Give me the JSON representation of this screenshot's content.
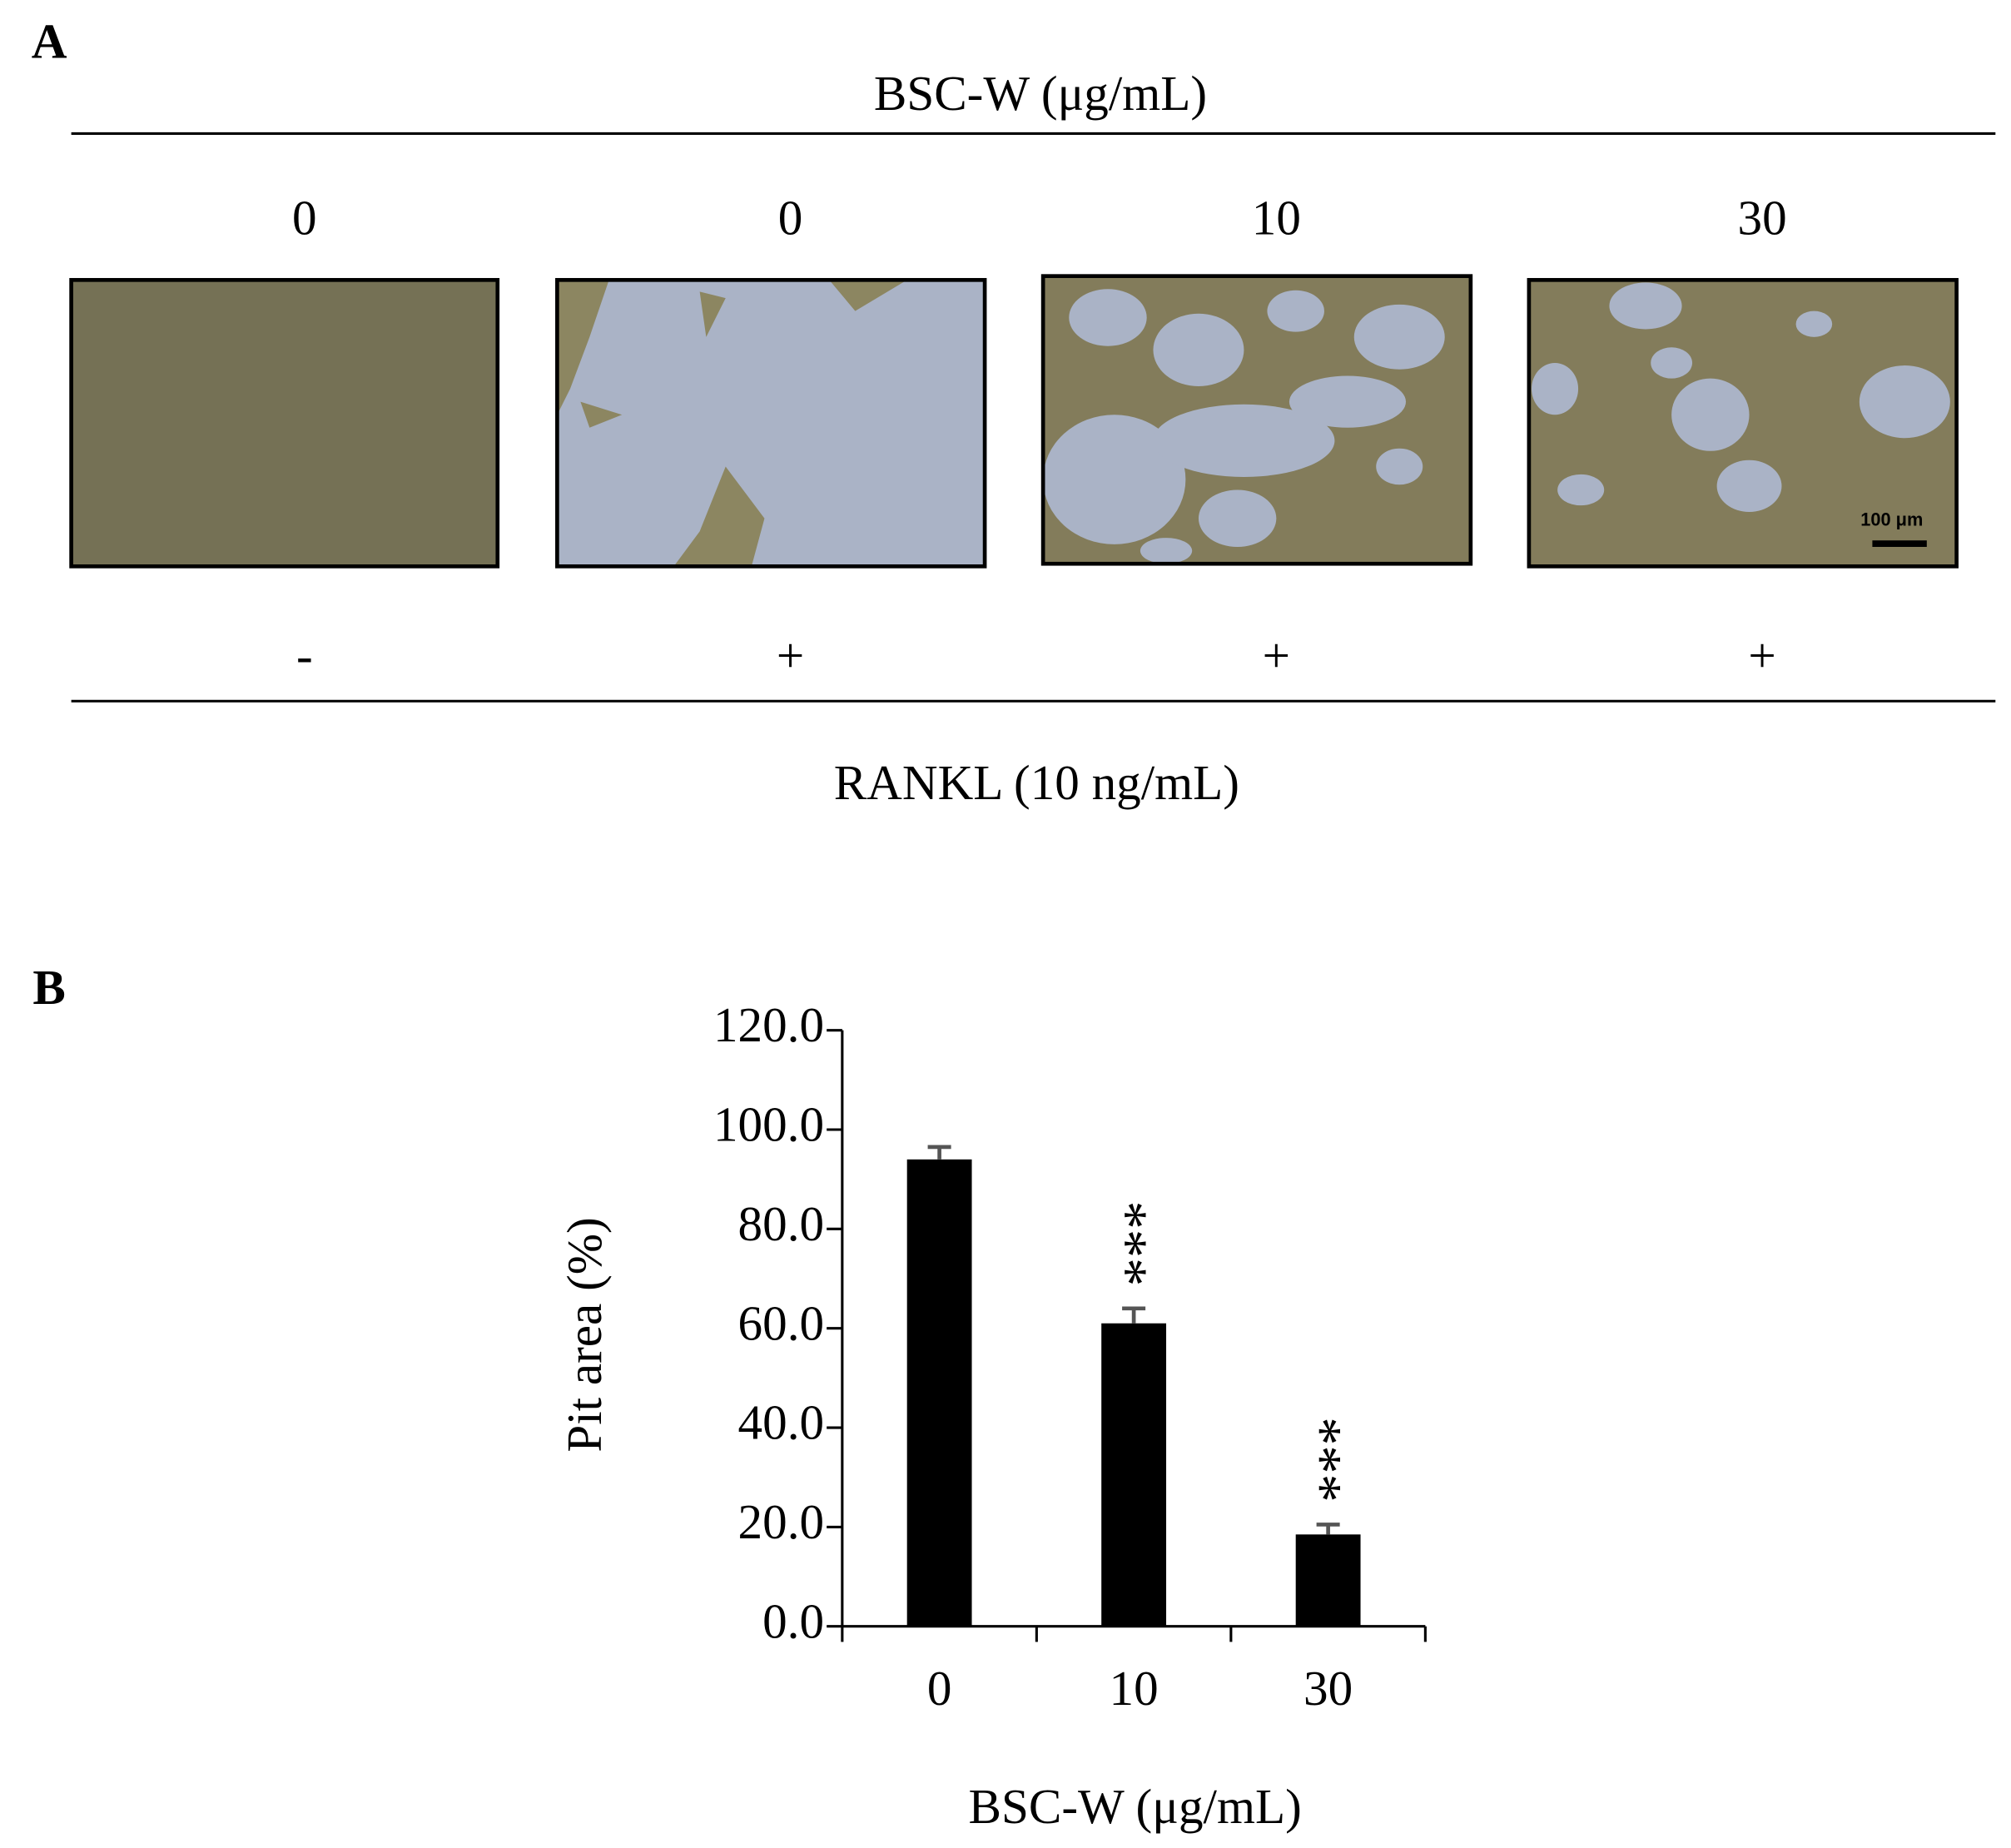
{
  "panel_a": {
    "label": "A",
    "title": "BSC-W (μg/mL)",
    "doses": [
      "0",
      "0",
      "10",
      "30"
    ],
    "rankl": [
      "-",
      "+",
      "+",
      "+"
    ],
    "rankl_label": "RANKL (10 ng/mL)",
    "scale_bar": "100 μm"
  },
  "chart_data": {
    "type": "bar",
    "panel_label": "B",
    "y_label": "Pit area (%)",
    "x_label": "BSC-W (μg/mL)",
    "categories": [
      "0",
      "10",
      "30"
    ],
    "values": [
      94,
      61,
      18.5
    ],
    "errors": [
      2.5,
      3,
      2
    ],
    "significance": [
      null,
      "***",
      "***"
    ],
    "color": "#000000",
    "error_color": "#555555",
    "ylim": [
      0,
      120
    ],
    "yticks": [
      {
        "value": 0,
        "label": "0.0"
      },
      {
        "value": 20,
        "label": "20.0"
      },
      {
        "value": 40,
        "label": "40.0"
      },
      {
        "value": 60,
        "label": "60.0"
      },
      {
        "value": 80,
        "label": "80.0"
      },
      {
        "value": 100,
        "label": "100.0"
      },
      {
        "value": 120,
        "label": "120.0"
      }
    ]
  }
}
